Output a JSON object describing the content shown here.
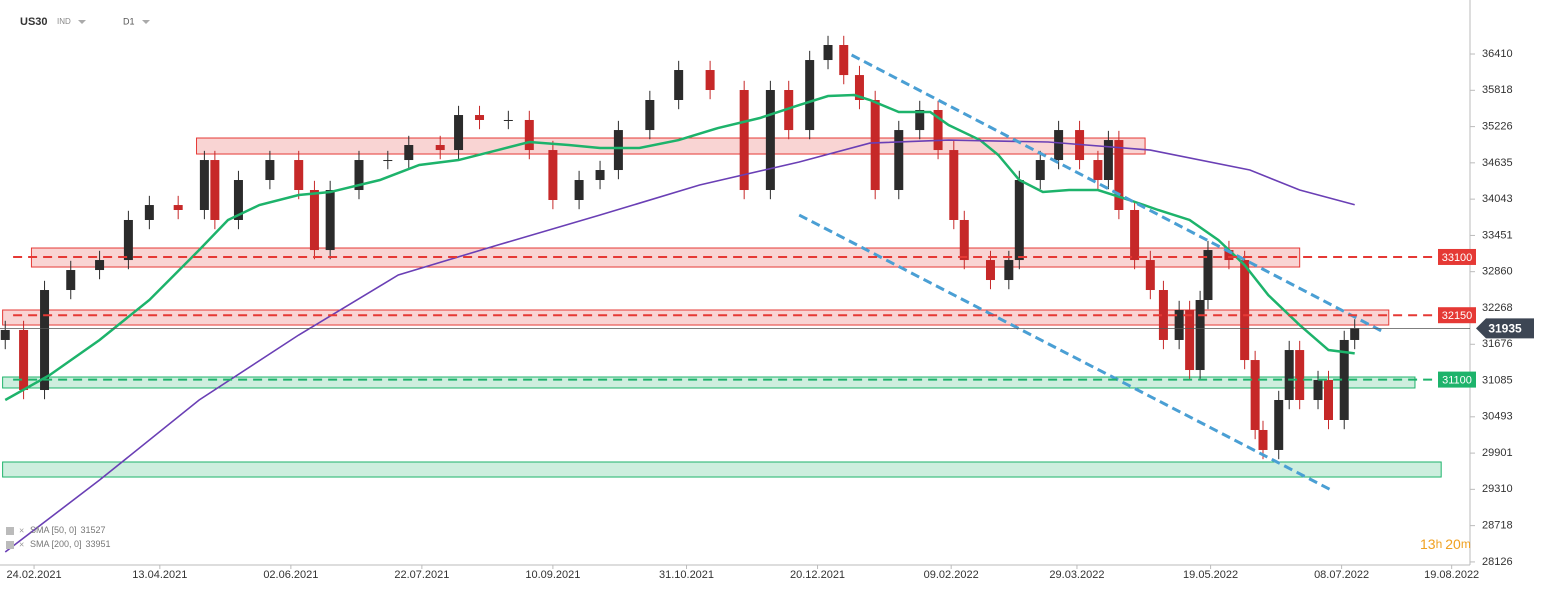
{
  "header": {
    "symbol": "US30",
    "market": "IND",
    "interval": "D1"
  },
  "timer": {
    "hours": "13",
    "h": "h",
    "minutes": "20",
    "m": "m"
  },
  "chart_data": {
    "type": "candlestick",
    "x": [
      -11,
      -4,
      4,
      14,
      25,
      36,
      44,
      55,
      65,
      69,
      78,
      90,
      101,
      107,
      113,
      124,
      135,
      143,
      155,
      162,
      170,
      181,
      189,
      198,
      208,
      216,
      223,
      235,
      246,
      258,
      271,
      281,
      288,
      296,
      303,
      309,
      315,
      321,
      330,
      338,
      345,
      351,
      355,
      365,
      372,
      376,
      384,
      391,
      399,
      406,
      410,
      414,
      420,
      426,
      431,
      437,
      441,
      445,
      448,
      456,
      462,
      466,
      469,
      475,
      479,
      483,
      490,
      494,
      500,
      504
    ],
    "open": [
      31746,
      31909,
      30930,
      32561,
      32887,
      33050,
      33703,
      33947,
      33866,
      34681,
      33703,
      34355,
      34681,
      34192,
      33213,
      34192,
      34681,
      34681,
      34926,
      34844,
      35415,
      35334,
      35334,
      34844,
      34029,
      34355,
      34518,
      35170,
      35660,
      36149,
      35823,
      34192,
      35823,
      35170,
      36312,
      36557,
      36067,
      35660,
      34192,
      35170,
      35497,
      34844,
      33703,
      33050,
      32724,
      33050,
      34355,
      34681,
      35170,
      34681,
      34355,
      35007,
      33866,
      33050,
      32561,
      31746,
      32235,
      31256,
      32398,
      33213,
      33050,
      31419,
      30278,
      29952,
      30767,
      31582,
      30767,
      31093,
      30441,
      31746
    ],
    "high": [
      32059,
      32059,
      32711,
      33037,
      33200,
      33853,
      34097,
      34097,
      34831,
      34831,
      34505,
      34831,
      34831,
      34342,
      34342,
      34831,
      34831,
      35076,
      35076,
      35565,
      35565,
      35484,
      35484,
      34994,
      34505,
      34668,
      35320,
      35810,
      36299,
      36299,
      35973,
      35973,
      35973,
      36462,
      36707,
      36707,
      36217,
      35810,
      35320,
      35647,
      35647,
      34994,
      33853,
      33200,
      33200,
      34505,
      34831,
      35320,
      35320,
      34831,
      35157,
      35157,
      34016,
      33200,
      32711,
      32385,
      32385,
      32548,
      33363,
      33363,
      33200,
      31569,
      30428,
      30917,
      31732,
      31732,
      31243,
      31243,
      31896,
      32085
    ],
    "low": [
      31596,
      30780,
      30780,
      32411,
      32737,
      32900,
      33553,
      33716,
      33716,
      33553,
      33553,
      34205,
      34042,
      33063,
      33063,
      34042,
      34531,
      34531,
      34694,
      34694,
      35184,
      35184,
      34694,
      33879,
      33879,
      34205,
      34368,
      35020,
      35510,
      35673,
      34042,
      34042,
      35020,
      35020,
      36162,
      35917,
      35510,
      34042,
      34042,
      35020,
      34694,
      33553,
      32900,
      32574,
      32574,
      32900,
      34205,
      34531,
      34531,
      34205,
      34205,
      33716,
      32900,
      32411,
      31596,
      31596,
      31106,
      31106,
      32248,
      32900,
      31269,
      30128,
      29802,
      29802,
      30617,
      30617,
      30617,
      30291,
      30291,
      31596
    ],
    "close": [
      31909,
      30930,
      32561,
      32887,
      33050,
      33703,
      33947,
      33866,
      34681,
      33703,
      34355,
      34681,
      34192,
      33213,
      34192,
      34681,
      34681,
      34926,
      34844,
      35415,
      35334,
      35334,
      34844,
      34029,
      34355,
      34518,
      35170,
      35660,
      36149,
      35823,
      34192,
      35823,
      35170,
      36312,
      36557,
      36067,
      35660,
      34192,
      35170,
      35497,
      34844,
      33703,
      33050,
      32724,
      33050,
      34355,
      34681,
      35170,
      34681,
      34355,
      35007,
      33866,
      33050,
      32561,
      31746,
      32235,
      31256,
      32398,
      33213,
      33050,
      31419,
      30278,
      29952,
      30767,
      31582,
      30767,
      31093,
      30441,
      31746,
      31935
    ],
    "up_color": "#2b2b2b",
    "down_color": "#c62828",
    "series": [
      {
        "name": "SMA [50, 0]",
        "last_value": 31527,
        "color": "#1db36b",
        "x": [
          -11,
          6,
          25,
          44,
          63,
          74,
          86,
          101,
          113,
          132,
          147,
          162,
          177,
          189,
          204,
          216,
          231,
          246,
          261,
          277,
          292,
          303,
          313,
          319,
          330,
          342,
          349,
          361,
          368,
          376,
          385,
          395,
          406,
          418,
          429,
          441,
          452,
          462,
          471,
          483,
          494,
          504
        ],
        "values": [
          30767,
          31175,
          31746,
          32398,
          33213,
          33703,
          33947,
          34110,
          34159,
          34355,
          34600,
          34681,
          34844,
          34975,
          34926,
          34877,
          34877,
          35007,
          35203,
          35366,
          35578,
          35725,
          35741,
          35660,
          35464,
          35464,
          35252,
          35007,
          34763,
          34355,
          34159,
          34192,
          34192,
          34029,
          33866,
          33703,
          33376,
          32968,
          32479,
          31990,
          31582,
          31527
        ]
      },
      {
        "name": "SMA [200, 0]",
        "last_value": 33951,
        "color": "#6a3fb5",
        "x": [
          -11,
          25,
          63,
          101,
          139,
          177,
          216,
          254,
          292,
          319,
          349,
          387,
          426,
          464,
          483,
          504
        ],
        "values": [
          28288,
          29462,
          30767,
          31827,
          32806,
          33295,
          33784,
          34274,
          34649,
          34958,
          35007,
          34975,
          34844,
          34518,
          34192,
          33951
        ]
      }
    ],
    "zones": [
      {
        "x": [
          62,
          424
        ],
        "y": [
          34779,
          35040
        ],
        "color": "#e53935"
      },
      {
        "x": [
          -1,
          483
        ],
        "y": [
          32936,
          33246
        ],
        "color": "#e53935"
      },
      {
        "x": [
          -12,
          517
        ],
        "y": [
          31990,
          32235
        ],
        "color": "#e53935"
      },
      {
        "x": [
          -12,
          527
        ],
        "y": [
          30963,
          31142
        ],
        "color": "#1db36b"
      },
      {
        "x": [
          -12,
          537
        ],
        "y": [
          29511,
          29756
        ],
        "color": "#1db36b"
      }
    ],
    "levels": [
      {
        "value": 33100,
        "color": "#e53935",
        "x0": -8
      },
      {
        "value": 32150,
        "color": "#e53935",
        "x0": -8
      },
      {
        "value": 31100,
        "color": "#1db36b",
        "x0": -8
      }
    ],
    "trendlines": [
      {
        "x": [
          312,
          515
        ],
        "y": [
          36394,
          31876
        ],
        "color": "#4a9fd4"
      },
      {
        "x": [
          292,
          495
        ],
        "y": [
          33784,
          29299
        ],
        "color": "#4a9fd4"
      }
    ],
    "current_price": 31935,
    "xlim": [
      -13,
      548
    ],
    "ylim": [
      28076,
      37291
    ],
    "yticks": [
      36410,
      35818,
      35226,
      34635,
      34043,
      33451,
      32860,
      32268,
      31676,
      31085,
      30493,
      29901,
      29310,
      28718,
      28126
    ],
    "xticks": [
      {
        "value": 0,
        "label": "24.02.2021"
      },
      {
        "value": 48,
        "label": "13.04.2021"
      },
      {
        "value": 98,
        "label": "02.06.2021"
      },
      {
        "value": 148,
        "label": "22.07.2021"
      },
      {
        "value": 198,
        "label": "10.09.2021"
      },
      {
        "value": 249,
        "label": "31.10.2021"
      },
      {
        "value": 299,
        "label": "20.12.2021"
      },
      {
        "value": 350,
        "label": "09.02.2022"
      },
      {
        "value": 398,
        "label": "29.03.2022"
      },
      {
        "value": 449,
        "label": "19.05.2022"
      },
      {
        "value": 499,
        "label": "08.07.2022"
      },
      {
        "value": 541,
        "label": "19.08.2022"
      }
    ]
  }
}
